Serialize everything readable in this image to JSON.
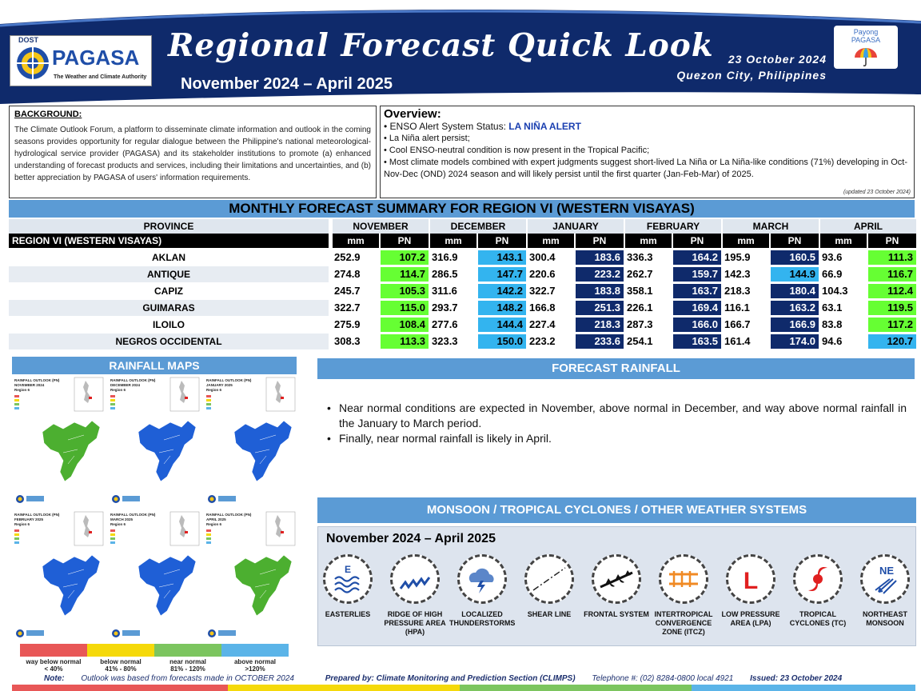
{
  "header": {
    "agency_top": "DOST",
    "agency": "PAGASA",
    "agency_tagline": "The Weather and Climate Authority",
    "title": "Regional Forecast Quick Look",
    "period": "November 2024 – April 2025",
    "issue_date": "23 October 2024",
    "issue_place": "Quezon City, Philippines",
    "payong_line1": "Payong",
    "payong_line2": "PAGASA",
    "colors": {
      "navy": "#0f2a6b",
      "accent": "#5b9bd5"
    }
  },
  "background": {
    "title": "BACKGROUND:",
    "text": "The Climate Outlook Forum, a platform to disseminate climate information and outlook in the coming seasons provides opportunity for regular dialogue between the Philippine's national meteorological-hydrological service provider (PAGASA) and its stakeholder institutions to promote (a) enhanced understanding of forecast products and services, including their limitations and uncertainties, and (b) better appreciation by PAGASA of users' information requirements."
  },
  "overview": {
    "title": "Overview:",
    "enso_label": "• ENSO Alert System Status: ",
    "enso_status": "LA NIÑA ALERT",
    "items": [
      "• La Niña alert persist;",
      "• Cool ENSO-neutral condition is now present in the Tropical Pacific;",
      "• Most climate models combined with expert judgments suggest short-lived La Niña or La Niña-like conditions (71%) developing in Oct-Nov-Dec (OND) 2024 season and will likely persist until the first quarter (Jan-Feb-Mar) of 2025."
    ],
    "updated": "(updated 23 October 2024)"
  },
  "summary": {
    "title": "MONTHLY FORECAST SUMMARY FOR REGION VI (WESTERN VISAYAS)",
    "province_header": "PROVINCE",
    "region_label": "REGION VI (WESTERN VISAYAS)",
    "months": [
      "NOVEMBER",
      "DECEMBER",
      "JANUARY",
      "FEBRUARY",
      "MARCH",
      "APRIL"
    ],
    "mm_label": "mm",
    "pn_label": "PN",
    "pn_colors": {
      "near_normal": "#66ff33",
      "above_normal": "#33b4ef",
      "way_above_normal": "#0f2a6b"
    },
    "rows": [
      {
        "province": "AKLAN",
        "mm": [
          "252.9",
          "316.9",
          "300.4",
          "336.3",
          "195.9",
          "93.6"
        ],
        "pn": [
          "107.2",
          "143.1",
          "183.6",
          "164.2",
          "160.5",
          "111.3"
        ]
      },
      {
        "province": "ANTIQUE",
        "mm": [
          "274.8",
          "286.5",
          "220.6",
          "262.7",
          "142.3",
          "66.9"
        ],
        "pn": [
          "114.7",
          "147.7",
          "223.2",
          "159.7",
          "144.9",
          "116.7"
        ]
      },
      {
        "province": "CAPIZ",
        "mm": [
          "245.7",
          "311.6",
          "322.7",
          "358.1",
          "218.3",
          "104.3"
        ],
        "pn": [
          "105.3",
          "142.2",
          "183.8",
          "163.7",
          "180.4",
          "112.4"
        ]
      },
      {
        "province": "GUIMARAS",
        "mm": [
          "322.7",
          "293.7",
          "166.8",
          "226.1",
          "116.1",
          "63.1"
        ],
        "pn": [
          "115.0",
          "148.2",
          "251.3",
          "169.4",
          "163.2",
          "119.5"
        ]
      },
      {
        "province": "ILOILO",
        "mm": [
          "275.9",
          "277.6",
          "227.4",
          "287.3",
          "166.7",
          "83.8"
        ],
        "pn": [
          "108.4",
          "144.4",
          "218.3",
          "166.0",
          "166.9",
          "117.2"
        ]
      },
      {
        "province": "NEGROS OCCIDENTAL",
        "mm": [
          "308.3",
          "323.3",
          "223.2",
          "254.1",
          "161.4",
          "94.6"
        ],
        "pn": [
          "113.3",
          "150.0",
          "233.6",
          "163.5",
          "174.0",
          "120.7"
        ]
      }
    ],
    "pn_class": [
      [
        "near",
        "above",
        "way",
        "way",
        "way",
        "near"
      ],
      [
        "near",
        "above",
        "way",
        "way",
        "above",
        "near"
      ],
      [
        "near",
        "above",
        "way",
        "way",
        "way",
        "near"
      ],
      [
        "near",
        "above",
        "way",
        "way",
        "way",
        "near"
      ],
      [
        "near",
        "above",
        "way",
        "way",
        "way",
        "near"
      ],
      [
        "near",
        "above",
        "way",
        "way",
        "way",
        "above"
      ]
    ]
  },
  "rainfall_maps": {
    "title": "RAINFALL MAPS",
    "maps": [
      {
        "t1": "RAINFALL OUTLOOK (PN)",
        "t2": "NOVEMBER 2024",
        "t3": "Region 6",
        "color": "#4caf30"
      },
      {
        "t1": "RAINFALL OUTLOOK (PN)",
        "t2": "DECEMBER 2024",
        "t3": "Region 6",
        "color": "#1f5fd6"
      },
      {
        "t1": "RAINFALL OUTLOOK (PN)",
        "t2": "JANUARY 2025",
        "t3": "Region 6",
        "color": "#1f5fd6"
      },
      {
        "t1": "RAINFALL OUTLOOK (PN)",
        "t2": "FEBRUARY 2025",
        "t3": "Region 6",
        "color": "#1f5fd6"
      },
      {
        "t1": "RAINFALL OUTLOOK (PN)",
        "t2": "MARCH 2025",
        "t3": "Region 6",
        "color": "#1f5fd6"
      },
      {
        "t1": "RAINFALL OUTLOOK (PN)",
        "t2": "APRIL 2025",
        "t3": "Region 6",
        "color": "#4caf30"
      }
    ],
    "legend": [
      {
        "l1": "way below normal",
        "l2": "< 40%",
        "color": "#e85757"
      },
      {
        "l1": "below normal",
        "l2": "41% - 80%",
        "color": "#f5d90a"
      },
      {
        "l1": "near normal",
        "l2": "81% - 120%",
        "color": "#7cc55f"
      },
      {
        "l1": "above normal",
        "l2": ">120%",
        "color": "#5bb4e8"
      }
    ]
  },
  "forecast_rainfall": {
    "title": "FORECAST RAINFALL",
    "items": [
      "Near normal conditions are expected in November, above normal in December, and way above normal rainfall in the January to March period.",
      "Finally, near normal rainfall is likely in April."
    ]
  },
  "systems": {
    "title": "MONSOON / TROPICAL CYCLONES / OTHER WEATHER SYSTEMS",
    "period": "November 2024 – April 2025",
    "items": [
      {
        "icon": "easterlies-icon",
        "label": "EASTERLIES"
      },
      {
        "icon": "ridge-icon",
        "label": "RIDGE OF HIGH PRESSURE AREA (HPA)"
      },
      {
        "icon": "thunderstorm-icon",
        "label": "LOCALIZED THUNDERSTORMS"
      },
      {
        "icon": "shear-line-icon",
        "label": "SHEAR LINE"
      },
      {
        "icon": "frontal-system-icon",
        "label": "FRONTAL SYSTEM"
      },
      {
        "icon": "itcz-icon",
        "label": "INTERTROPICAL CONVERGENCE ZONE (ITCZ)"
      },
      {
        "icon": "lpa-icon",
        "label": "LOW PRESSURE AREA (LPA)"
      },
      {
        "icon": "tropical-cyclone-icon",
        "label": "TROPICAL CYCLONES (TC)"
      },
      {
        "icon": "northeast-monsoon-icon",
        "label": "NORTHEAST MONSOON"
      }
    ],
    "easterlies_letter": "E",
    "lpa_letter": "L",
    "ne_letter": "NE"
  },
  "footer": {
    "note_label": "Note:",
    "note": " Outlook was based from forecasts made in OCTOBER 2024",
    "prepared": "Prepared by: Climate Monitoring and Prediction Section (CLIMPS)",
    "telephone": "Telephone #: (02) 8284-0800 local 4921",
    "issued": "Issued: 23 October 2024"
  }
}
